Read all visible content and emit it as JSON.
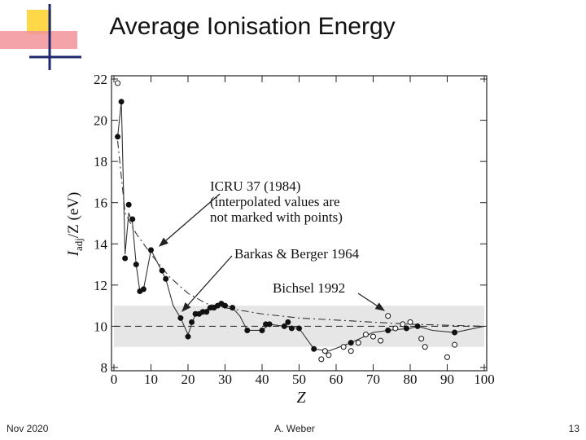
{
  "chart_data": {
    "type": "line",
    "title": "Average Ionisation Energy",
    "x_label": "Z",
    "y_label": [
      "I",
      "adj",
      "/Z (eV)"
    ],
    "xlim": [
      0,
      100
    ],
    "ylim": [
      8,
      22
    ],
    "xticks": [
      0,
      10,
      20,
      30,
      40,
      50,
      60,
      70,
      80,
      90,
      100
    ],
    "yticks": [
      8,
      10,
      12,
      14,
      16,
      18,
      20,
      22
    ],
    "band": [
      9,
      11
    ],
    "band_color": "#e6e6e6",
    "reference": 10,
    "series": [
      {
        "style": "solid",
        "color": "#333333",
        "x": [
          1,
          2,
          3,
          4,
          5,
          6,
          7,
          8,
          10,
          12,
          14,
          16,
          18,
          20,
          22,
          26,
          29,
          32,
          34,
          36,
          40,
          42,
          46,
          50,
          54,
          58,
          64,
          70,
          74,
          80,
          82,
          86,
          92,
          100
        ],
        "values": [
          19.2,
          20.9,
          13.5,
          15.5,
          15.0,
          13.0,
          11.7,
          11.8,
          13.7,
          13.0,
          12.3,
          11.0,
          10.4,
          9.6,
          10.6,
          10.9,
          11.1,
          10.9,
          10.5,
          9.8,
          9.8,
          10.1,
          10.0,
          9.9,
          8.9,
          8.8,
          9.2,
          9.7,
          9.8,
          9.9,
          10.0,
          9.8,
          9.7,
          10.0
        ]
      },
      {
        "style": "dashdot",
        "color": "#333333",
        "x": [
          1,
          3,
          6,
          10,
          15,
          20,
          25,
          30,
          40,
          50,
          60,
          70,
          80,
          90,
          100
        ],
        "values": [
          19.0,
          15.5,
          14.5,
          13.5,
          12.4,
          11.6,
          11.1,
          10.9,
          10.6,
          10.4,
          10.3,
          10.2,
          10.1,
          10.05,
          10.0
        ]
      },
      {
        "marker": "filled",
        "color": "#111111",
        "x": [
          1,
          2,
          3,
          4,
          5,
          6,
          7,
          8,
          10,
          13,
          14,
          18,
          20,
          21,
          22,
          23,
          24,
          25,
          26,
          27,
          28,
          29,
          30,
          32,
          36,
          40,
          41,
          42,
          46,
          47,
          48,
          50,
          54,
          64,
          74,
          79,
          82,
          92
        ],
        "values": [
          19.2,
          20.9,
          13.3,
          15.9,
          15.2,
          13.0,
          11.7,
          11.8,
          13.7,
          12.7,
          12.3,
          10.4,
          9.5,
          10.2,
          10.6,
          10.6,
          10.7,
          10.7,
          10.9,
          10.9,
          11.0,
          11.1,
          11.0,
          10.9,
          9.8,
          9.8,
          10.1,
          10.1,
          10.0,
          10.2,
          9.9,
          9.9,
          8.9,
          9.2,
          9.8,
          9.9,
          10.0,
          9.7
        ]
      },
      {
        "marker": "open",
        "color": "#111111",
        "x": [
          1,
          56,
          57,
          58,
          62,
          64,
          66,
          68,
          70,
          72,
          74,
          76,
          78,
          80,
          83,
          84,
          90,
          92
        ],
        "values": [
          21.8,
          8.4,
          8.8,
          8.6,
          9.0,
          8.8,
          9.2,
          9.6,
          9.5,
          9.3,
          10.5,
          9.9,
          10.1,
          10.2,
          9.4,
          9.0,
          8.5,
          9.1
        ]
      }
    ],
    "annotations": [
      [
        "ICRU 37 (1984)",
        "(interpolated values are",
        "not marked with points)"
      ],
      [
        "Barkas & Berger 1964"
      ],
      [
        "Bichsel 1992"
      ]
    ]
  },
  "footer": {
    "date": "Nov 2020",
    "author": "A. Weber",
    "page": "13"
  }
}
